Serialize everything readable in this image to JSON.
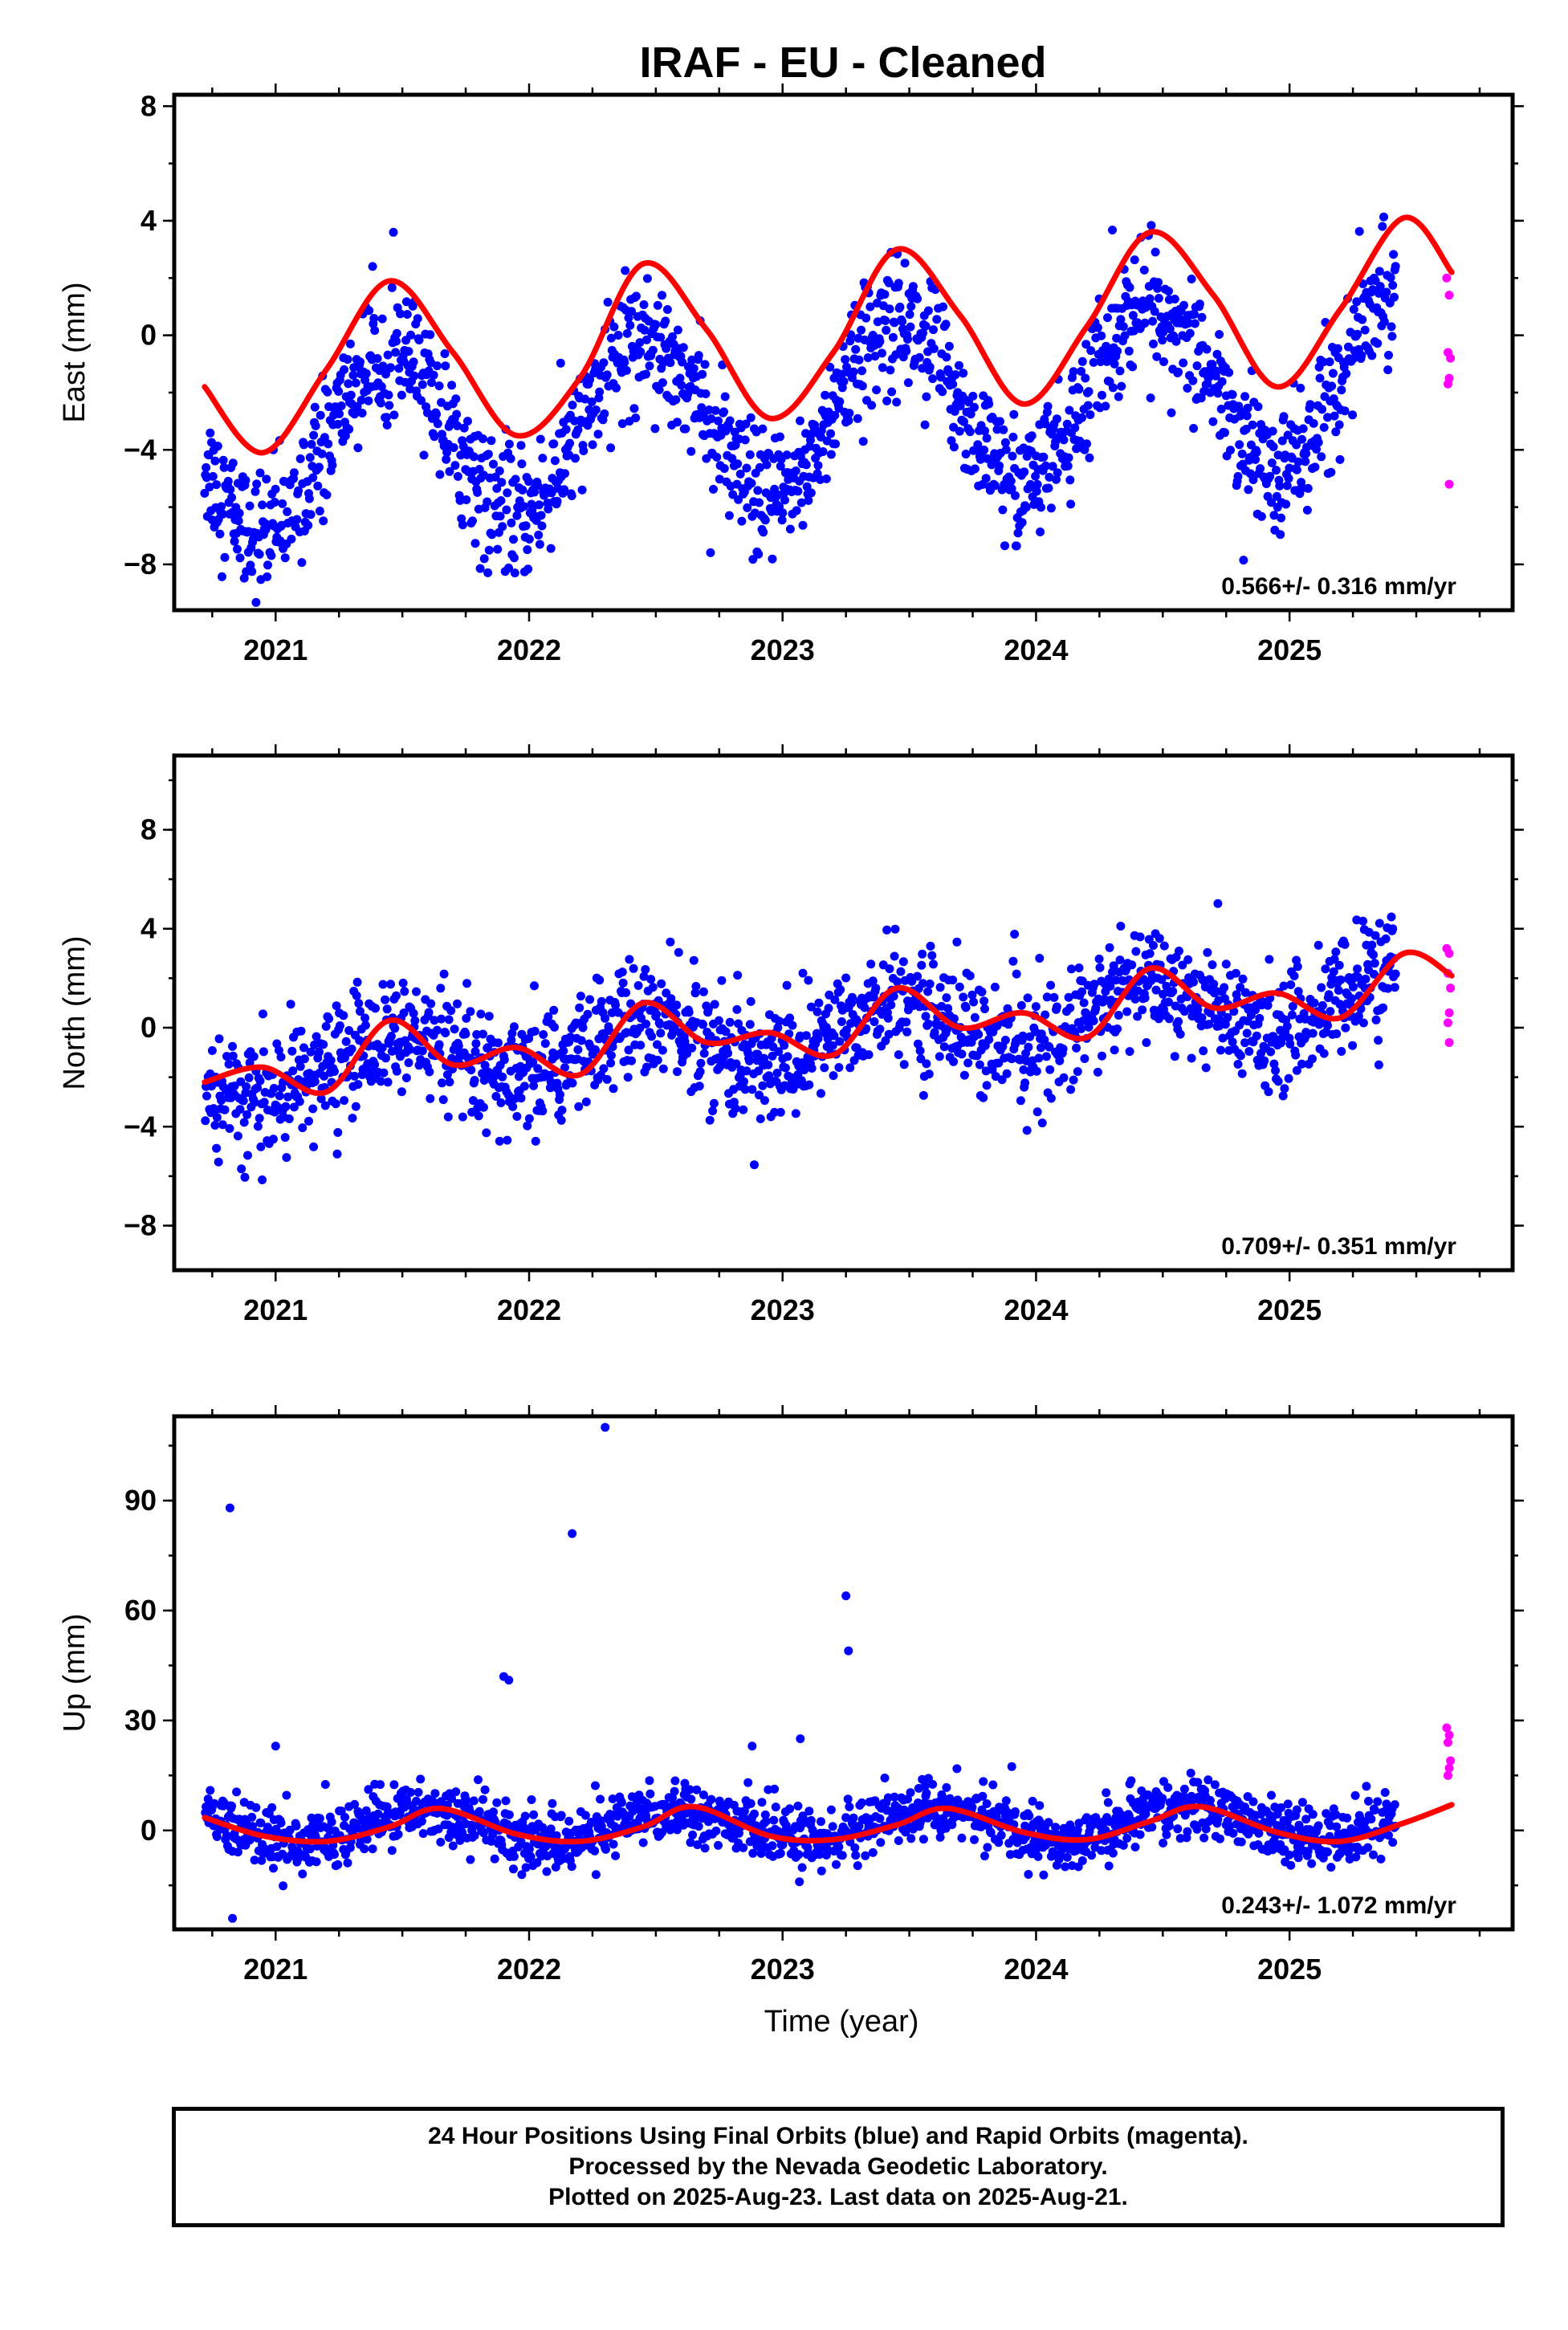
{
  "chart_data": [
    {
      "type": "scatter",
      "title": "IRAF  - EU - Cleaned",
      "ylabel": "East (mm)",
      "xlabel": "",
      "xlim": [
        2020.6,
        2025.88
      ],
      "ylim": [
        -9.6,
        8.4
      ],
      "yticks": [
        -8,
        -4,
        0,
        4,
        8
      ],
      "xticks": [
        2021,
        2022,
        2023,
        2024,
        2025
      ],
      "rate_label": "0.566+/- 0.316 mm/yr",
      "series": [
        {
          "color": "#0000ff",
          "trend": 0.566,
          "seasonal_amplitude": 3.0,
          "offset": -4.0,
          "noise": 1.1,
          "x_start": 2020.72,
          "x_end": 2025.42
        },
        {
          "color": "#ff00ff",
          "y": [
            2.0,
            1.4,
            -0.6,
            -0.8,
            -1.5,
            -1.7,
            -5.2
          ],
          "x": [
            2025.62,
            2025.63,
            2025.625,
            2025.635,
            2025.63,
            2025.625,
            2025.63
          ]
        }
      ],
      "fit_color": "#ff0000",
      "fit": {
        "x": [
          2020.72,
          2020.95,
          2021.2,
          2021.45,
          2021.7,
          2021.95,
          2022.2,
          2022.45,
          2022.7,
          2022.95,
          2023.2,
          2023.45,
          2023.7,
          2023.95,
          2024.2,
          2024.45,
          2024.7,
          2024.95,
          2025.2,
          2025.45,
          2025.64
        ],
        "y": [
          -1.8,
          -4.1,
          -1.2,
          1.9,
          -0.6,
          -3.5,
          -1.5,
          2.5,
          0.2,
          -2.9,
          -0.6,
          3.0,
          0.7,
          -2.4,
          0.3,
          3.6,
          1.4,
          -1.8,
          0.9,
          4.1,
          2.2
        ]
      }
    },
    {
      "type": "scatter",
      "ylabel": "North (mm)",
      "xlabel": "",
      "xlim": [
        2020.6,
        2025.88
      ],
      "ylim": [
        -9.8,
        11.0
      ],
      "yticks": [
        -8,
        -4,
        0,
        4,
        8
      ],
      "xticks": [
        2021,
        2022,
        2023,
        2024,
        2025
      ],
      "rate_label": "0.709+/- 0.351 mm/yr",
      "series": [
        {
          "color": "#0000ff",
          "trend": 0.709,
          "seasonal_amplitude": 1.1,
          "offset": -2.0,
          "noise": 1.2,
          "x_start": 2020.72,
          "x_end": 2025.42
        },
        {
          "color": "#ff00ff",
          "y": [
            3.2,
            3.0,
            2.2,
            1.6,
            0.6,
            0.2,
            -0.6
          ],
          "x": [
            2025.62,
            2025.63,
            2025.625,
            2025.635,
            2025.63,
            2025.625,
            2025.63
          ]
        }
      ],
      "fit_color": "#ff0000",
      "fit": {
        "x": [
          2020.72,
          2020.95,
          2021.2,
          2021.45,
          2021.7,
          2021.95,
          2022.2,
          2022.45,
          2022.7,
          2022.95,
          2023.2,
          2023.45,
          2023.7,
          2023.95,
          2024.2,
          2024.45,
          2024.7,
          2024.95,
          2025.2,
          2025.45,
          2025.64
        ],
        "y": [
          -2.2,
          -1.6,
          -2.6,
          0.3,
          -1.5,
          -0.8,
          -1.9,
          1.0,
          -0.6,
          -0.2,
          -1.1,
          1.6,
          0.0,
          0.6,
          -0.4,
          2.4,
          0.8,
          1.4,
          0.4,
          3.0,
          2.1
        ]
      }
    },
    {
      "type": "scatter",
      "ylabel": "Up (mm)",
      "xlabel": "Time (year)",
      "xlim": [
        2020.6,
        2025.88
      ],
      "ylim": [
        -27,
        113
      ],
      "yticks": [
        0,
        30,
        60,
        90
      ],
      "xticks": [
        2021,
        2022,
        2023,
        2024,
        2025
      ],
      "rate_label": "0.243+/- 1.072 mm/yr",
      "series": [
        {
          "color": "#0000ff",
          "trend": 0.243,
          "seasonal_amplitude": 4.5,
          "offset": 1.0,
          "noise": 4.0,
          "x_start": 2020.72,
          "x_end": 2025.42,
          "outliers": {
            "x": [
              2020.82,
              2021.9,
              2021.92,
              2022.17,
              2022.3,
              2023.25,
              2023.26,
              2020.83,
              2021.0,
              2022.88,
              2023.07
            ],
            "y": [
              88,
              42,
              41,
              81,
              110,
              64,
              49,
              -24,
              23,
              23,
              25
            ]
          }
        },
        {
          "color": "#ff00ff",
          "y": [
            28,
            26,
            24,
            19,
            17,
            15
          ],
          "x": [
            2025.62,
            2025.63,
            2025.625,
            2025.635,
            2025.63,
            2025.625
          ]
        }
      ],
      "fit_color": "#ff0000",
      "fit": {
        "x": [
          2020.72,
          2020.95,
          2021.2,
          2021.45,
          2021.65,
          2021.95,
          2022.2,
          2022.45,
          2022.65,
          2022.95,
          2023.2,
          2023.45,
          2023.65,
          2023.95,
          2024.2,
          2024.45,
          2024.65,
          2024.95,
          2025.2,
          2025.45,
          2025.64
        ],
        "y": [
          3.5,
          -1.5,
          -3.0,
          1.0,
          6.0,
          -1.0,
          -3.0,
          1.0,
          6.5,
          -1.5,
          -2.5,
          1.5,
          6.0,
          -0.5,
          -2.5,
          2.5,
          6.5,
          -0.5,
          -3.0,
          2.0,
          7.0
        ]
      }
    }
  ],
  "footer": {
    "line1": "24 Hour Positions Using Final Orbits (blue) and Rapid Orbits (magenta).",
    "line2": "Processed by the Nevada Geodetic Laboratory.",
    "line3": "Plotted on 2025-Aug-23. Last data on 2025-Aug-21."
  }
}
